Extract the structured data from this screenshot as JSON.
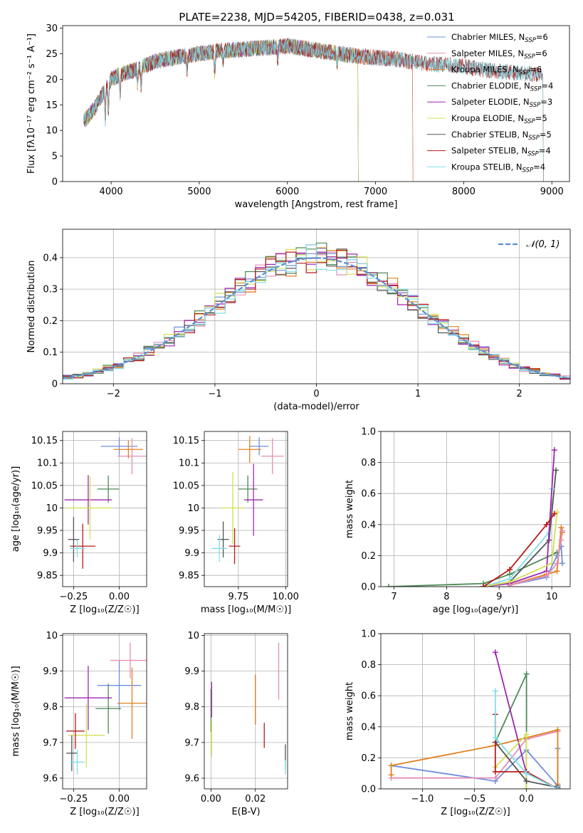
{
  "figure_title": "PLATE=2238, MJD=54205, FIBERID=0438, z=0.031",
  "colors": {
    "chabrier_miles": "#6e8fdc",
    "salpeter_miles": "#e58fb7",
    "kroupa_miles": "#e0801f",
    "chabrier_elodie": "#4f8a57",
    "salpeter_elodie": "#9c27b0",
    "kroupa_elodie": "#d4e157",
    "chabrier_stelib": "#555555",
    "salpeter_stelib": "#b71c1c",
    "kroupa_stelib": "#80deea",
    "normal_curve": "#5b8fd6"
  },
  "chart_data": [
    {
      "id": "spectrum",
      "type": "line",
      "xlabel": "wavelength [Angstrom, rest frame]",
      "ylabel": "Flux [fλ10⁻¹⁷ erg cm⁻² s⁻¹ A⁻¹]",
      "xlim": [
        3450,
        9200
      ],
      "ylim": [
        0,
        30.5
      ],
      "xticks": [
        4000,
        5000,
        6000,
        7000,
        8000,
        9000
      ],
      "yticks": [
        0,
        5,
        10,
        15,
        20,
        25,
        30
      ],
      "legend_loc": "upper right",
      "grid": false,
      "continuum": {
        "x": [
          3700,
          3800,
          3900,
          4000,
          4100,
          4300,
          4500,
          4800,
          5200,
          5600,
          6000,
          6400,
          6800,
          7200,
          7600,
          8000,
          8400,
          8800
        ],
        "y": [
          12,
          14,
          17,
          20,
          21,
          22,
          23.5,
          24.5,
          25.5,
          26,
          26.5,
          25.5,
          24.5,
          24,
          23,
          22.5,
          21.5,
          21
        ]
      },
      "series": [
        {
          "name": "Chabrier MILES, N_SSP=6",
          "label_main": "Chabrier MILES, N",
          "label_sub": "SSP",
          "label_tail": "=6",
          "color_key": "chabrier_miles",
          "x_end": 7420
        },
        {
          "name": "Salpeter MILES, N_SSP=6",
          "label_main": "Salpeter MILES, N",
          "label_sub": "SSP",
          "label_tail": "=6",
          "color_key": "salpeter_miles",
          "x_end": 7420
        },
        {
          "name": "Kroupa MILES, N_SSP=6",
          "label_main": "Kroupa MILES, N",
          "label_sub": "SSP",
          "label_tail": "=6",
          "color_key": "kroupa_miles",
          "x_end": 7420
        },
        {
          "name": "Chabrier ELODIE, N_SSP=4",
          "label_main": "Chabrier ELODIE, N",
          "label_sub": "SSP",
          "label_tail": "=4",
          "color_key": "chabrier_elodie",
          "x_end": 6800
        },
        {
          "name": "Salpeter ELODIE, N_SSP=3",
          "label_main": "Salpeter ELODIE, N",
          "label_sub": "SSP",
          "label_tail": "=3",
          "color_key": "salpeter_elodie",
          "x_end": 6800
        },
        {
          "name": "Kroupa ELODIE, N_SSP=5",
          "label_main": "Kroupa ELODIE, N",
          "label_sub": "SSP",
          "label_tail": "=5",
          "color_key": "kroupa_elodie",
          "x_end": 6800
        },
        {
          "name": "Chabrier STELIB, N_SSP=5",
          "label_main": "Chabrier STELIB, N",
          "label_sub": "SSP",
          "label_tail": "=5",
          "color_key": "chabrier_stelib",
          "x_end": 8900
        },
        {
          "name": "Salpeter STELIB, N_SSP=4",
          "label_main": "Salpeter STELIB, N",
          "label_sub": "SSP",
          "label_tail": "=4",
          "color_key": "salpeter_stelib",
          "x_end": 8900
        },
        {
          "name": "Kroupa STELIB, N_SSP=4",
          "label_main": "Kroupa STELIB, N",
          "label_sub": "SSP",
          "label_tail": "=4",
          "color_key": "kroupa_stelib",
          "x_end": 8900
        }
      ]
    },
    {
      "id": "residuals",
      "type": "histogram",
      "xlabel": "(data-model)/error",
      "ylabel": "Normed distribution",
      "xlim": [
        -2.5,
        2.5
      ],
      "ylim": [
        0,
        0.49
      ],
      "xticks": [
        -2,
        -1,
        0,
        1,
        2
      ],
      "xtick_labels": [
        "−2",
        "−1",
        "0",
        "1",
        "2"
      ],
      "yticks": [
        0,
        0.1,
        0.2,
        0.3,
        0.4
      ],
      "grid": true,
      "legend_loc": "upper right",
      "normal_label": "𝒩(0, 1)",
      "bin_width": 0.1,
      "series_colors": [
        "chabrier_miles",
        "salpeter_miles",
        "kroupa_miles",
        "chabrier_elodie",
        "salpeter_elodie",
        "kroupa_elodie",
        "chabrier_stelib",
        "salpeter_stelib",
        "kroupa_stelib"
      ]
    },
    {
      "id": "age_vs_Z",
      "type": "errorbar",
      "xlabel": "Z [log₁₀(Z/Z☉)]",
      "ylabel": "age  [log₁₀(age/yr)]",
      "xlim": [
        -0.31,
        0.15
      ],
      "ylim": [
        9.825,
        10.17
      ],
      "xticks": [
        -0.25,
        0.0
      ],
      "xtick_labels": [
        "−0.25",
        "0.00"
      ],
      "yticks": [
        9.85,
        9.9,
        9.95,
        10.0,
        10.05,
        10.1,
        10.15
      ],
      "grid": true,
      "points": [
        {
          "c": "chabrier_miles",
          "x": 0.0,
          "dx": 0.1,
          "y": 10.137,
          "dy": 0.02
        },
        {
          "c": "salpeter_miles",
          "x": 0.07,
          "dx": 0.08,
          "y": 10.115,
          "dy": 0.04
        },
        {
          "c": "kroupa_miles",
          "x": 0.05,
          "dx": 0.08,
          "y": 10.13,
          "dy": 0.02
        },
        {
          "c": "chabrier_elodie",
          "x": -0.06,
          "dx": 0.06,
          "y": 10.042,
          "dy": 0.03
        },
        {
          "c": "salpeter_elodie",
          "x": -0.17,
          "dx": 0.13,
          "y": 10.018,
          "dy": 0.055
        },
        {
          "c": "kroupa_elodie",
          "x": -0.16,
          "dx": 0.12,
          "y": 10.0,
          "dy": 0.07
        },
        {
          "c": "chabrier_stelib",
          "x": -0.25,
          "dx": 0.03,
          "y": 9.93,
          "dy": 0.05
        },
        {
          "c": "salpeter_stelib",
          "x": -0.2,
          "dx": 0.07,
          "y": 9.915,
          "dy": 0.05
        },
        {
          "c": "kroupa_stelib",
          "x": -0.23,
          "dx": 0.04,
          "y": 9.91,
          "dy": 0.02
        }
      ]
    },
    {
      "id": "age_vs_mass",
      "type": "errorbar",
      "xlabel": "mass [log₁₀(M/M☉)]",
      "ylabel": "",
      "xlim": [
        9.57,
        10.01
      ],
      "ylim": [
        9.825,
        10.17
      ],
      "xticks": [
        9.75,
        10.0
      ],
      "xtick_labels": [
        "9.75",
        "10.00"
      ],
      "yticks": [
        9.85,
        9.9,
        9.95,
        10.0,
        10.05,
        10.1,
        10.15
      ],
      "grid": true,
      "points": [
        {
          "c": "chabrier_miles",
          "x": 9.86,
          "dx": 0.05,
          "y": 10.137,
          "dy": 0.02
        },
        {
          "c": "salpeter_miles",
          "x": 9.93,
          "dx": 0.06,
          "y": 10.115,
          "dy": 0.04
        },
        {
          "c": "kroupa_miles",
          "x": 9.81,
          "dx": 0.06,
          "y": 10.13,
          "dy": 0.03
        },
        {
          "c": "chabrier_elodie",
          "x": 9.8,
          "dx": 0.05,
          "y": 10.042,
          "dy": 0.03
        },
        {
          "c": "salpeter_elodie",
          "x": 9.83,
          "dx": 0.05,
          "y": 10.018,
          "dy": 0.08
        },
        {
          "c": "kroupa_elodie",
          "x": 9.72,
          "dx": 0.06,
          "y": 10.0,
          "dy": 0.08
        },
        {
          "c": "chabrier_stelib",
          "x": 9.67,
          "dx": 0.03,
          "y": 9.93,
          "dy": 0.04
        },
        {
          "c": "salpeter_stelib",
          "x": 9.73,
          "dx": 0.03,
          "y": 9.915,
          "dy": 0.04
        },
        {
          "c": "kroupa_stelib",
          "x": 9.65,
          "dx": 0.04,
          "y": 9.91,
          "dy": 0.03
        }
      ]
    },
    {
      "id": "weight_vs_age",
      "type": "line",
      "xlabel": "age  [log₁₀(age/yr)]",
      "ylabel": "mass weight",
      "xlim": [
        6.75,
        10.35
      ],
      "ylim": [
        0,
        1.0
      ],
      "xticks": [
        7,
        8,
        9,
        10
      ],
      "yticks": [
        0,
        0.2,
        0.4,
        0.6,
        0.8,
        1.0
      ],
      "ytick_labels": [
        "0.0",
        "0.2",
        "0.4",
        "0.6",
        "0.8",
        "1.0"
      ],
      "grid": true,
      "series": [
        {
          "c": "chabrier_elodie",
          "x": [
            6.9,
            8.7,
            9.2,
            10.1
          ],
          "y": [
            0.0,
            0.02,
            0.08,
            0.22
          ]
        },
        {
          "c": "chabrier_stelib",
          "x": [
            8.7,
            9.2,
            9.95,
            10.08
          ],
          "y": [
            0.0,
            0.03,
            0.3,
            0.75
          ]
        },
        {
          "c": "kroupa_stelib",
          "x": [
            8.7,
            9.2,
            9.95,
            10.0
          ],
          "y": [
            0.0,
            0.05,
            0.35,
            0.63
          ]
        },
        {
          "c": "salpeter_elodie",
          "x": [
            8.7,
            9.2,
            9.9,
            10.05
          ],
          "y": [
            0.0,
            0.02,
            0.1,
            0.88
          ]
        },
        {
          "c": "kroupa_elodie",
          "x": [
            8.7,
            9.2,
            10.0,
            10.1
          ],
          "y": [
            0.0,
            0.03,
            0.15,
            0.48
          ]
        },
        {
          "c": "salpeter_stelib",
          "x": [
            8.7,
            9.2,
            9.9,
            10.05
          ],
          "y": [
            0.0,
            0.11,
            0.4,
            0.47
          ]
        },
        {
          "c": "chabrier_miles",
          "x": [
            9.2,
            9.9,
            10.1,
            10.18,
            10.2
          ],
          "y": [
            0.01,
            0.06,
            0.2,
            0.26,
            0.15
          ]
        },
        {
          "c": "kroupa_miles",
          "x": [
            9.2,
            9.9,
            10.1,
            10.18,
            10.2
          ],
          "y": [
            0.01,
            0.08,
            0.1,
            0.38,
            0.35
          ]
        },
        {
          "c": "salpeter_miles",
          "x": [
            9.2,
            9.9,
            10.1,
            10.18,
            10.2
          ],
          "y": [
            0.01,
            0.07,
            0.15,
            0.3,
            0.36
          ]
        }
      ]
    },
    {
      "id": "mass_vs_Z",
      "type": "errorbar",
      "xlabel": "Z [log₁₀(Z/Z☉)]",
      "ylabel": "mass [log₁₀(M/M☉)]",
      "xlim": [
        -0.31,
        0.15
      ],
      "ylim": [
        9.57,
        10.005
      ],
      "xticks": [
        -0.25,
        0.0
      ],
      "xtick_labels": [
        "−0.25",
        "0.00"
      ],
      "yticks": [
        9.6,
        9.7,
        9.8,
        9.9,
        10.0
      ],
      "grid": true,
      "points": [
        {
          "c": "chabrier_miles",
          "x": 0.0,
          "dx": 0.12,
          "y": 9.86,
          "dy": 0.07
        },
        {
          "c": "salpeter_miles",
          "x": 0.06,
          "dx": 0.11,
          "y": 9.93,
          "dy": 0.05
        },
        {
          "c": "kroupa_miles",
          "x": 0.07,
          "dx": 0.08,
          "y": 9.81,
          "dy": 0.1
        },
        {
          "c": "chabrier_elodie",
          "x": -0.06,
          "dx": 0.07,
          "y": 9.795,
          "dy": 0.07
        },
        {
          "c": "salpeter_elodie",
          "x": -0.17,
          "dx": 0.13,
          "y": 9.825,
          "dy": 0.09
        },
        {
          "c": "kroupa_elodie",
          "x": -0.18,
          "dx": 0.1,
          "y": 9.72,
          "dy": 0.09
        },
        {
          "c": "chabrier_stelib",
          "x": -0.26,
          "dx": 0.03,
          "y": 9.67,
          "dy": 0.05
        },
        {
          "c": "salpeter_stelib",
          "x": -0.24,
          "dx": 0.05,
          "y": 9.732,
          "dy": 0.05
        },
        {
          "c": "kroupa_stelib",
          "x": -0.23,
          "dx": 0.04,
          "y": 9.645,
          "dy": 0.035
        }
      ]
    },
    {
      "id": "mass_vs_ebv",
      "type": "errorbar",
      "xlabel": "E(B-V)",
      "ylabel": "",
      "xlim": [
        -0.003,
        0.0345
      ],
      "ylim": [
        9.57,
        10.005
      ],
      "xticks": [
        0.0,
        0.02
      ],
      "xtick_labels": [
        "0.00",
        "0.02"
      ],
      "yticks": [
        9.6,
        9.7,
        9.8,
        9.9,
        10.0
      ],
      "grid": true,
      "points": [
        {
          "c": "chabrier_miles",
          "x": 0.02,
          "dx": 0.0,
          "y": 9.82,
          "dy": 0.07
        },
        {
          "c": "salpeter_miles",
          "x": 0.0305,
          "dx": 0.0,
          "y": 9.9,
          "dy": 0.08
        },
        {
          "c": "kroupa_miles",
          "x": 0.02,
          "dx": 0.0,
          "y": 9.82,
          "dy": 0.07
        },
        {
          "c": "chabrier_elodie",
          "x": 0.0,
          "dx": 0.0,
          "y": 9.79,
          "dy": 0.06
        },
        {
          "c": "salpeter_elodie",
          "x": 0.0003,
          "dx": 0.0,
          "y": 9.82,
          "dy": 0.05
        },
        {
          "c": "kroupa_elodie",
          "x": 0.0003,
          "dx": 0.0,
          "y": 9.71,
          "dy": 0.05
        },
        {
          "c": "chabrier_stelib",
          "x": 0.0335,
          "dx": 0.0,
          "y": 9.66,
          "dy": 0.035
        },
        {
          "c": "salpeter_stelib",
          "x": 0.024,
          "dx": 0.0,
          "y": 9.72,
          "dy": 0.035
        },
        {
          "c": "kroupa_stelib",
          "x": 0.0335,
          "dx": 0.0,
          "y": 9.63,
          "dy": 0.02
        }
      ]
    },
    {
      "id": "weight_vs_Z",
      "type": "line",
      "xlabel": "Z [log₁₀(Z/Z☉)]",
      "ylabel": "mass weight",
      "xlim": [
        -1.4,
        0.42
      ],
      "ylim": [
        0,
        1.0
      ],
      "xticks": [
        -1.0,
        -0.5,
        0.0
      ],
      "xtick_labels": [
        "−1.0",
        "−0.5",
        "0.0"
      ],
      "yticks": [
        0,
        0.2,
        0.4,
        0.6,
        0.8,
        1.0
      ],
      "ytick_labels": [
        "0.0",
        "0.2",
        "0.4",
        "0.6",
        "0.8",
        "1.0"
      ],
      "grid": true,
      "series": [
        {
          "c": "chabrier_miles",
          "x": [
            -1.3,
            -0.3,
            0.0,
            0.3,
            0.3
          ],
          "y": [
            0.15,
            0.05,
            0.25,
            0.02,
            0.26
          ]
        },
        {
          "c": "salpeter_miles",
          "x": [
            -1.3,
            -0.3,
            0.0,
            0.3
          ],
          "y": [
            0.07,
            0.07,
            0.32,
            0.37
          ]
        },
        {
          "c": "kroupa_miles",
          "x": [
            -1.3,
            -1.3,
            -0.3,
            0.3,
            0.3
          ],
          "y": [
            0.09,
            0.15,
            0.28,
            0.38,
            0.03
          ]
        },
        {
          "c": "chabrier_elodie",
          "x": [
            -0.3,
            0.0,
            0.0
          ],
          "y": [
            0.3,
            0.74,
            0.0
          ]
        },
        {
          "c": "salpeter_elodie",
          "x": [
            -0.3,
            0.0,
            0.0
          ],
          "y": [
            0.88,
            0.1,
            0.0
          ]
        },
        {
          "c": "kroupa_elodie",
          "x": [
            -0.3,
            0.0,
            0.0
          ],
          "y": [
            0.14,
            0.35,
            0.0
          ]
        },
        {
          "c": "chabrier_stelib",
          "x": [
            -0.3,
            0.0,
            0.3
          ],
          "y": [
            0.3,
            0.05,
            0.01
          ]
        },
        {
          "c": "salpeter_stelib",
          "x": [
            -0.3,
            -0.3,
            0.0,
            0.3
          ],
          "y": [
            0.48,
            0.11,
            0.11,
            0.0
          ]
        },
        {
          "c": "kroupa_stelib",
          "x": [
            -0.3,
            -0.3,
            0.0,
            0.3
          ],
          "y": [
            0.63,
            0.33,
            0.1,
            0.0
          ]
        }
      ]
    }
  ]
}
